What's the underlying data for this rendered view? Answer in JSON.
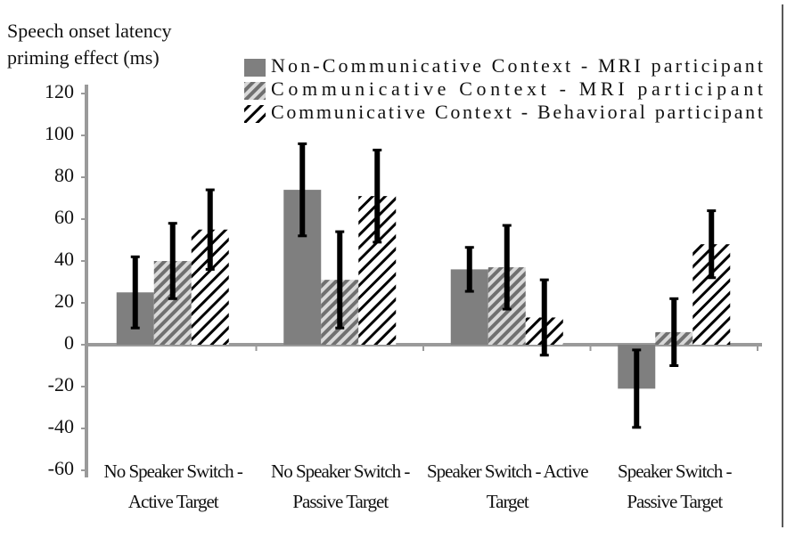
{
  "chart_data": {
    "type": "bar",
    "ylabel": "Speech onset latency priming effect (ms)",
    "categories": [
      "No Speaker Switch - Active Target",
      "No Speaker Switch - Passive Target",
      "Speaker Switch - Active Target",
      "Speaker Switch - Passive Target"
    ],
    "series": [
      {
        "name": "Non-Communicative Context - MRI participant",
        "color": "#7f7f7f",
        "hatch": "none",
        "values": [
          25,
          74,
          36,
          -21
        ],
        "errors": [
          17,
          22,
          10.5,
          18.5
        ]
      },
      {
        "name": "Communicative Context - MRI participant",
        "color": "#707070",
        "hatch": "dense",
        "values": [
          40,
          31,
          37,
          6
        ],
        "errors": [
          18,
          23,
          20,
          16
        ]
      },
      {
        "name": "Communicative Context - Behavioral participant",
        "color": "#000000",
        "hatch": "sparse",
        "values": [
          55,
          71,
          13,
          48
        ],
        "errors": [
          19,
          22,
          18,
          16
        ]
      }
    ],
    "ylim": [
      -60,
      120
    ],
    "yticks": [
      -60,
      -40,
      -20,
      0,
      20,
      40,
      60,
      80,
      100,
      120
    ],
    "grid": false
  }
}
